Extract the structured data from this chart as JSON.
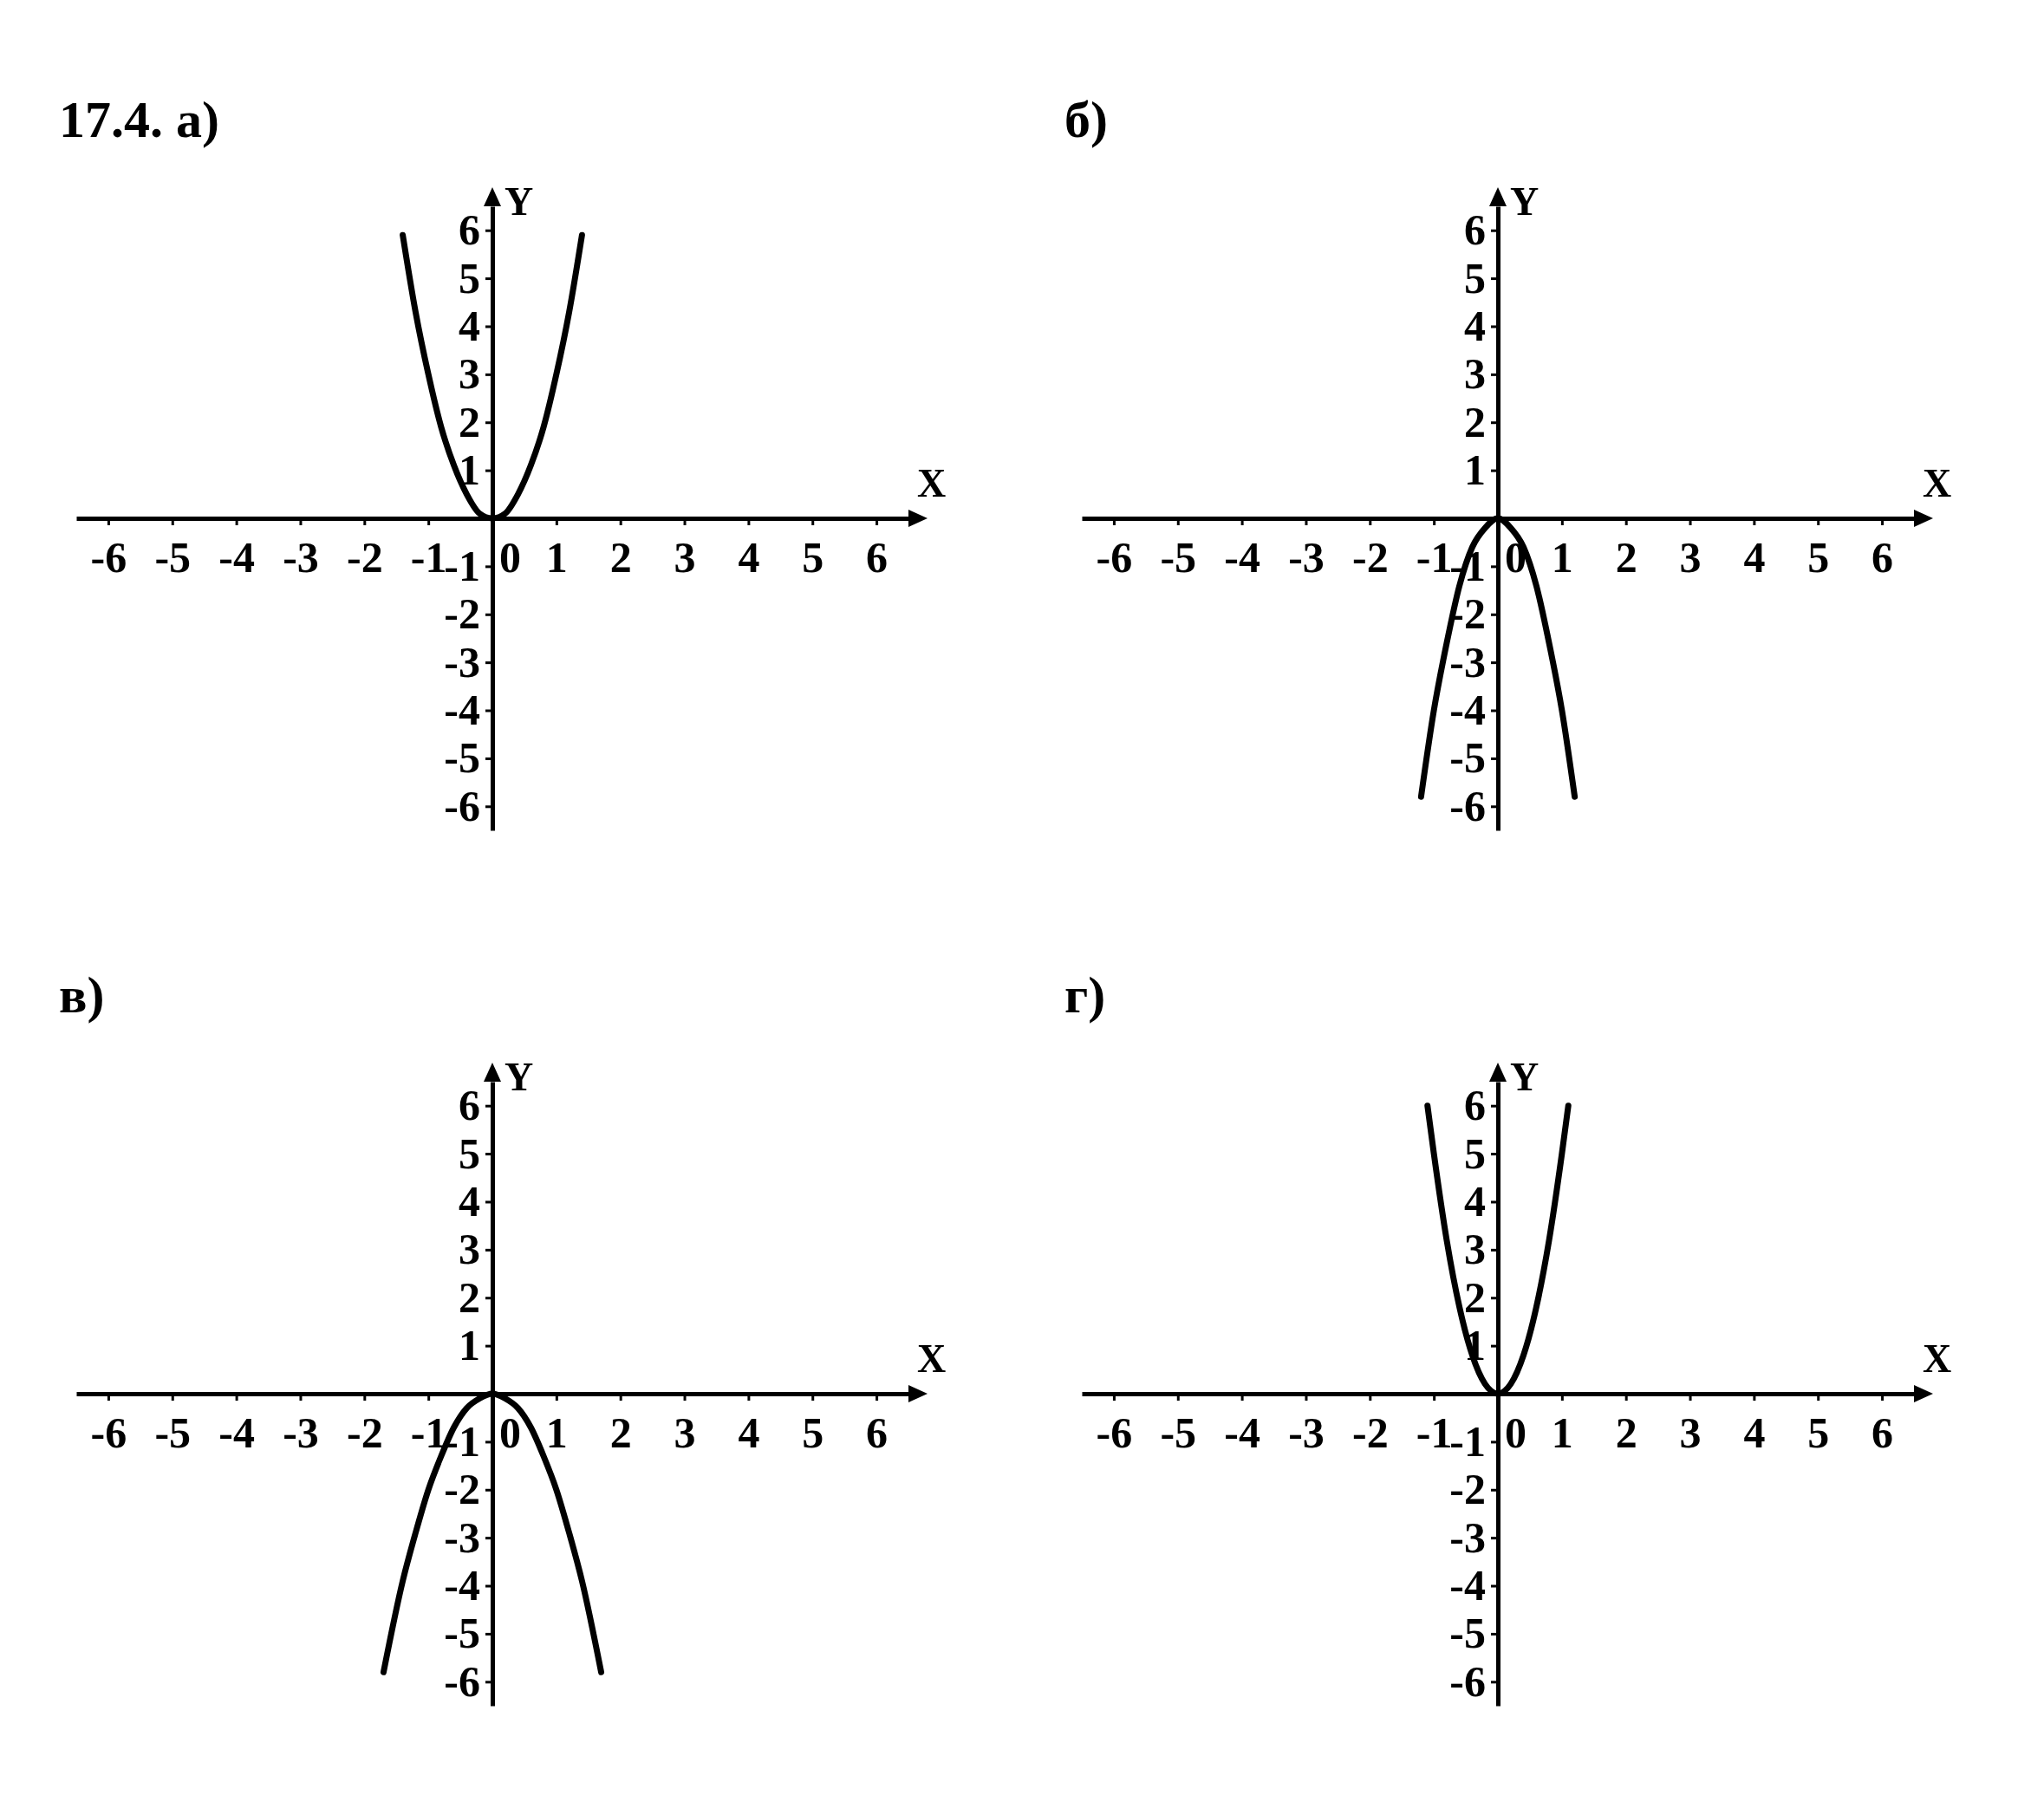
{
  "chart_data": [
    {
      "type": "line",
      "title": "17.4. а)",
      "xlabel": "X",
      "ylabel": "Y",
      "xlim": [
        -6.5,
        6.5
      ],
      "ylim": [
        -6.5,
        6.5
      ],
      "xticks": [
        -6,
        -5,
        -4,
        -3,
        -2,
        -1,
        0,
        1,
        2,
        3,
        4,
        5,
        6
      ],
      "yticks": [
        -6,
        -5,
        -4,
        -3,
        -2,
        -1,
        1,
        2,
        3,
        4,
        5,
        6
      ],
      "series": [
        {
          "color": "#000000",
          "x": [
            -1.4,
            -1.2,
            -1,
            -0.8,
            -0.6,
            -0.4,
            -0.2,
            0,
            0.2,
            0.4,
            0.6,
            0.8,
            1,
            1.2,
            1.4
          ],
          "values": [
            5.9,
            4.3,
            3,
            1.9,
            1.1,
            0.5,
            0.1,
            0,
            0.1,
            0.5,
            1.1,
            1.9,
            3,
            4.3,
            5.9
          ]
        }
      ]
    },
    {
      "type": "line",
      "title": "б)",
      "xlabel": "X",
      "ylabel": "Y",
      "xlim": [
        -6.5,
        6.5
      ],
      "ylim": [
        -6.5,
        6.5
      ],
      "xticks": [
        -6,
        -5,
        -4,
        -3,
        -2,
        -1,
        0,
        1,
        2,
        3,
        4,
        5,
        6
      ],
      "yticks": [
        -6,
        -5,
        -4,
        -3,
        -2,
        -1,
        1,
        2,
        3,
        4,
        5,
        6
      ],
      "series": [
        {
          "color": "#000000",
          "x": [
            -1.2,
            -1,
            -0.8,
            -0.6,
            -0.4,
            -0.2,
            0,
            0.2,
            0.4,
            0.6,
            0.8,
            1,
            1.2
          ],
          "values": [
            -5.8,
            -4,
            -2.6,
            -1.4,
            -0.6,
            -0.2,
            0,
            -0.2,
            -0.6,
            -1.4,
            -2.6,
            -4,
            -5.8
          ]
        }
      ]
    },
    {
      "type": "line",
      "title": "в)",
      "xlabel": "X",
      "ylabel": "Y",
      "xlim": [
        -6.5,
        6.5
      ],
      "ylim": [
        -6.5,
        6.5
      ],
      "xticks": [
        -6,
        -5,
        -4,
        -3,
        -2,
        -1,
        0,
        1,
        2,
        3,
        4,
        5,
        6
      ],
      "yticks": [
        -6,
        -5,
        -4,
        -3,
        -2,
        -1,
        1,
        2,
        3,
        4,
        5,
        6
      ],
      "series": [
        {
          "color": "#000000",
          "x": [
            -1.7,
            -1.4,
            -1.2,
            -1,
            -0.8,
            -0.6,
            -0.4,
            -0.2,
            0,
            0.2,
            0.4,
            0.6,
            0.8,
            1,
            1.2,
            1.4,
            1.7
          ],
          "values": [
            -5.8,
            -3.9,
            -2.9,
            -2,
            -1.3,
            -0.7,
            -0.3,
            -0.1,
            0,
            -0.1,
            -0.3,
            -0.7,
            -1.3,
            -2,
            -2.9,
            -3.9,
            -5.8
          ]
        }
      ]
    },
    {
      "type": "line",
      "title": "г)",
      "xlabel": "X",
      "ylabel": "Y",
      "xlim": [
        -6.5,
        6.5
      ],
      "ylim": [
        -6.5,
        6.5
      ],
      "xticks": [
        -6,
        -5,
        -4,
        -3,
        -2,
        -1,
        0,
        1,
        2,
        3,
        4,
        5,
        6
      ],
      "yticks": [
        -6,
        -5,
        -4,
        -3,
        -2,
        -1,
        1,
        2,
        3,
        4,
        5,
        6
      ],
      "series": [
        {
          "color": "#000000",
          "x": [
            -1.1,
            -1,
            -0.8,
            -0.6,
            -0.4,
            -0.2,
            0,
            0.2,
            0.4,
            0.6,
            0.8,
            1,
            1.1
          ],
          "values": [
            6,
            5,
            3.2,
            1.8,
            0.8,
            0.2,
            0,
            0.2,
            0.8,
            1.8,
            3.2,
            5,
            6
          ]
        }
      ]
    }
  ]
}
